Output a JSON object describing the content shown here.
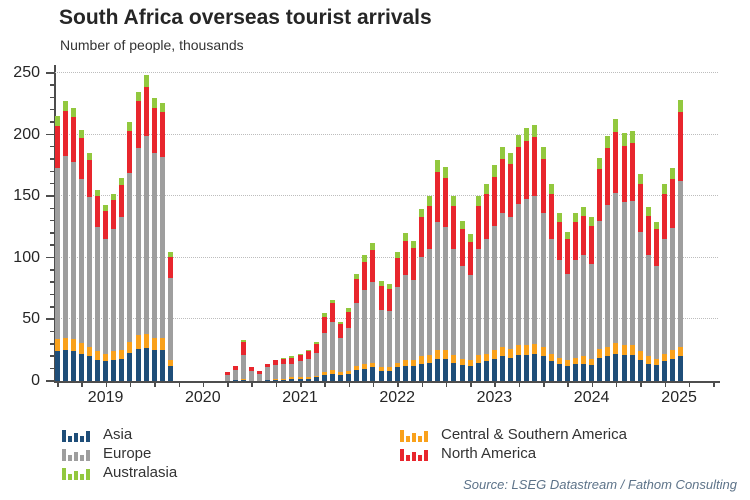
{
  "header": {
    "title": "South Africa overseas tourist arrivals",
    "subtitle": "Number of people, thousands"
  },
  "source_note": "Source: LSEG Datastream / Fathom Consulting",
  "legend": {
    "columns": [
      [
        "Asia",
        "Europe",
        "Australasia"
      ],
      [
        "Central & Southern America",
        "North America"
      ]
    ]
  },
  "chart_data": {
    "type": "bar",
    "stacked": true,
    "title": "South Africa overseas tourist arrivals",
    "ylabel": "Number of people, thousands",
    "ylim": [
      0,
      250
    ],
    "yticks": [
      0,
      50,
      100,
      150,
      200,
      250
    ],
    "minor_tick_step": 10,
    "grid": "horizontal dotted at major ticks",
    "legend_position": "bottom",
    "year_labels": [
      "2019",
      "2020",
      "2021",
      "2022",
      "2023",
      "2024",
      "2025"
    ],
    "x": [
      "Jan 2019",
      "Feb 2019",
      "Mar 2019",
      "Apr 2019",
      "May 2019",
      "Jun 2019",
      "Jul 2019",
      "Aug 2019",
      "Sep 2019",
      "Oct 2019",
      "Nov 2019",
      "Dec 2019",
      "Jan 2020",
      "Feb 2020",
      "Mar 2020",
      "Apr 2020",
      "May 2020",
      "Jun 2020",
      "Jul 2020",
      "Aug 2020",
      "Sep 2020",
      "Oct 2020",
      "Nov 2020",
      "Dec 2020",
      "Jan 2021",
      "Feb 2021",
      "Mar 2021",
      "Apr 2021",
      "May 2021",
      "Jun 2021",
      "Jul 2021",
      "Aug 2021",
      "Sep 2021",
      "Oct 2021",
      "Nov 2021",
      "Dec 2021",
      "Jan 2022",
      "Feb 2022",
      "Mar 2022",
      "Apr 2022",
      "May 2022",
      "Jun 2022",
      "Jul 2022",
      "Aug 2022",
      "Sep 2022",
      "Oct 2022",
      "Nov 2022",
      "Dec 2022",
      "Jan 2023",
      "Feb 2023",
      "Mar 2023",
      "Apr 2023",
      "May 2023",
      "Jun 2023",
      "Jul 2023",
      "Aug 2023",
      "Sep 2023",
      "Oct 2023",
      "Nov 2023",
      "Dec 2023",
      "Jan 2024",
      "Feb 2024",
      "Mar 2024",
      "Apr 2024",
      "May 2024",
      "Jun 2024",
      "Jul 2024",
      "Aug 2024",
      "Sep 2024",
      "Oct 2024",
      "Nov 2024",
      "Dec 2024",
      "Jan 2025",
      "Feb 2025",
      "Mar 2025",
      "Apr 2025",
      "May 2025",
      "Jun 2025"
    ],
    "series": [
      {
        "name": "Asia",
        "color": "#1f4e79",
        "values": [
          24,
          25,
          24,
          22,
          20,
          17,
          16,
          17,
          18,
          23,
          26,
          27,
          25,
          25,
          12,
          0,
          0,
          0,
          0,
          0,
          0,
          0,
          1,
          1,
          0,
          0,
          1,
          1,
          1,
          2,
          2,
          2,
          3,
          5,
          6,
          5,
          6,
          9,
          10,
          11,
          8,
          8,
          11,
          12,
          12,
          14,
          15,
          18,
          18,
          15,
          13,
          12,
          15,
          16,
          18,
          20,
          19,
          21,
          21,
          22,
          20,
          16,
          14,
          12,
          14,
          14,
          13,
          19,
          20,
          22,
          21,
          21,
          17,
          14,
          13,
          16,
          18,
          20
        ]
      },
      {
        "name": "Central & Southern America",
        "color": "#f9a11b",
        "values": [
          10,
          10,
          10,
          9,
          8,
          7,
          6,
          7,
          7,
          9,
          11,
          11,
          10,
          10,
          5,
          0,
          0,
          0,
          0,
          0,
          0,
          0,
          0,
          1,
          0,
          0,
          0,
          1,
          1,
          1,
          1,
          1,
          1,
          2,
          3,
          2,
          2,
          3,
          4,
          4,
          3,
          3,
          4,
          5,
          5,
          6,
          6,
          7,
          7,
          6,
          5,
          5,
          6,
          6,
          7,
          8,
          7,
          8,
          8,
          8,
          8,
          6,
          5,
          5,
          5,
          6,
          5,
          7,
          8,
          9,
          8,
          8,
          7,
          6,
          5,
          6,
          7,
          8
        ]
      },
      {
        "name": "Europe",
        "color": "#9e9e9e",
        "values": [
          139,
          148,
          144,
          133,
          121,
          101,
          93,
          99,
          108,
          137,
          152,
          161,
          150,
          147,
          67,
          0,
          0,
          0,
          0,
          0,
          0,
          5,
          8,
          19,
          8,
          6,
          10,
          11,
          12,
          11,
          13,
          15,
          19,
          32,
          39,
          28,
          35,
          51,
          60,
          65,
          47,
          46,
          61,
          69,
          65,
          81,
          86,
          104,
          100,
          86,
          75,
          69,
          86,
          93,
          101,
          108,
          107,
          115,
          119,
          120,
          108,
          93,
          79,
          70,
          79,
          82,
          77,
          104,
          115,
          122,
          116,
          117,
          97,
          82,
          75,
          93,
          99,
          134
        ]
      },
      {
        "name": "North America",
        "color": "#e8262d",
        "values": [
          34,
          36,
          36,
          33,
          30,
          25,
          23,
          24,
          26,
          34,
          38,
          40,
          37,
          36,
          17,
          0,
          0,
          0,
          0,
          0,
          0,
          2,
          3,
          11,
          3,
          2,
          3,
          4,
          4,
          5,
          5,
          6,
          7,
          13,
          15,
          11,
          13,
          20,
          23,
          26,
          19,
          18,
          24,
          28,
          26,
          32,
          35,
          41,
          40,
          35,
          30,
          27,
          35,
          37,
          40,
          44,
          43,
          46,
          47,
          48,
          44,
          37,
          31,
          28,
          31,
          32,
          31,
          42,
          46,
          49,
          46,
          47,
          39,
          32,
          30,
          37,
          40,
          56
        ]
      },
      {
        "name": "Australasia",
        "color": "#92c83e",
        "values": [
          8,
          8,
          8,
          7,
          6,
          5,
          5,
          5,
          6,
          7,
          8,
          9,
          8,
          8,
          4,
          0,
          0,
          0,
          0,
          0,
          0,
          0,
          0,
          1,
          0,
          0,
          0,
          0,
          1,
          1,
          1,
          1,
          2,
          3,
          3,
          2,
          3,
          4,
          5,
          6,
          4,
          4,
          5,
          6,
          6,
          7,
          8,
          9,
          9,
          8,
          7,
          6,
          8,
          8,
          9,
          10,
          9,
          10,
          10,
          10,
          10,
          8,
          7,
          6,
          7,
          7,
          7,
          9,
          10,
          11,
          10,
          10,
          8,
          7,
          6,
          8,
          9,
          10
        ]
      }
    ]
  }
}
